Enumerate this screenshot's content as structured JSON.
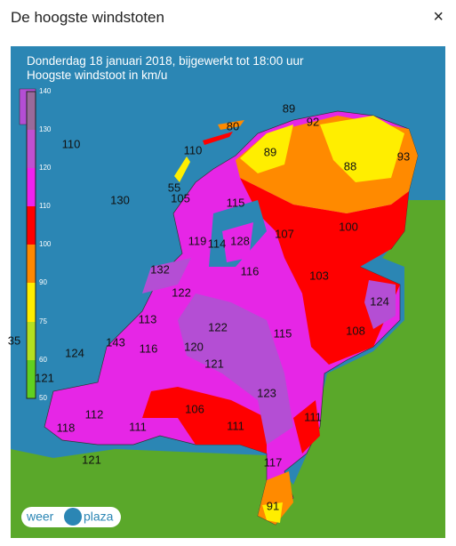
{
  "header": {
    "title": "De hoogste windstoten",
    "close": "×"
  },
  "map": {
    "caption": [
      "Donderdag 18 januari 2018, bijgewerkt tot 18:00 uur",
      "Hoogste windstoot in km/u"
    ],
    "legend": {
      "ticks": [
        "140",
        "130",
        "120",
        "110",
        "100",
        "90",
        "75",
        "60",
        "50"
      ]
    },
    "stations": [
      "89",
      "80",
      "92",
      "110",
      "110",
      "89",
      "88",
      "93",
      "55",
      "130",
      "105",
      "115",
      "100",
      "107",
      "119",
      "114",
      "128",
      "132",
      "116",
      "103",
      "122",
      "124",
      "113",
      "122",
      "115",
      "108",
      "35",
      "143",
      "116",
      "120",
      "124",
      "121",
      "121",
      "123",
      "106",
      "112",
      "111",
      "118",
      "111",
      "111",
      "117",
      "121",
      "91"
    ],
    "logo": [
      "weer",
      "plaza"
    ]
  }
}
